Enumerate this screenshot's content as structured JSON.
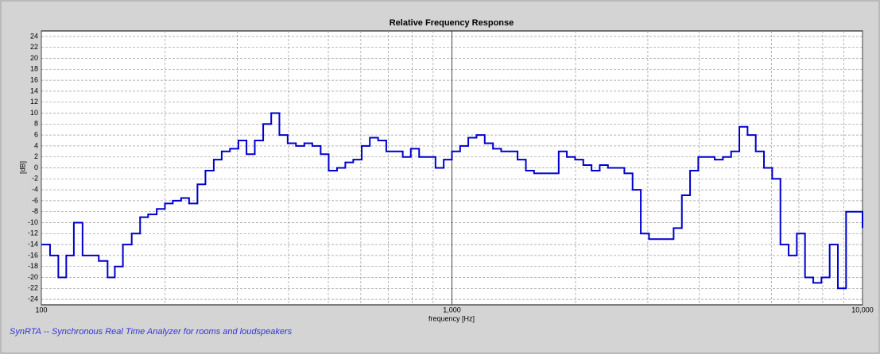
{
  "chart_data": {
    "type": "step",
    "title": "Relative Frequency Response",
    "x_label": "frequency [Hz]",
    "y_label": "[dB]",
    "footer": "SynRTA -- Synchronous Real Time Analyzer for rooms and loudspeakers",
    "log_x": true,
    "grid": true,
    "xlim": [
      100,
      10000
    ],
    "ylim": [
      -25,
      25
    ],
    "xticks": [
      100,
      {
        "value": 1000,
        "label": "1,000"
      },
      {
        "value": 10000,
        "label": "10,000"
      }
    ],
    "xminor_ticks": [
      200,
      300,
      400,
      500,
      600,
      700,
      800,
      900,
      2000,
      3000,
      4000,
      5000,
      6000,
      7000,
      8000,
      9000
    ],
    "yticks": [
      -24,
      -22,
      -20,
      -18,
      -16,
      -14,
      -12,
      -10,
      -8,
      -6,
      -4,
      -2,
      0,
      2,
      4,
      6,
      8,
      10,
      12,
      14,
      16,
      18,
      20,
      22,
      24
    ],
    "series": [
      {
        "color": "#0000cc",
        "x": [
          100,
          105,
          110,
          115,
          120,
          126,
          132,
          138,
          145,
          151,
          158,
          166,
          174,
          182,
          191,
          200,
          209,
          219,
          229,
          240,
          251,
          263,
          275,
          288,
          302,
          316,
          331,
          347,
          363,
          380,
          398,
          417,
          437,
          457,
          479,
          501,
          525,
          550,
          575,
          603,
          631,
          661,
          692,
          724,
          759,
          794,
          832,
          871,
          912,
          955,
          1000,
          1047,
          1096,
          1148,
          1202,
          1259,
          1318,
          1380,
          1445,
          1514,
          1585,
          1660,
          1738,
          1820,
          1905,
          1995,
          2089,
          2188,
          2291,
          2399,
          2512,
          2630,
          2754,
          2884,
          3020,
          3162,
          3311,
          3467,
          3631,
          3802,
          3981,
          4169,
          4365,
          4571,
          4786,
          5012,
          5248,
          5495,
          5754,
          6026,
          6310,
          6607,
          6918,
          7244,
          7586,
          7943,
          8318,
          8710,
          9120,
          9550,
          10000
        ],
        "values": [
          -14,
          -16,
          -20,
          -16,
          -10,
          -16,
          -16,
          -17,
          -20,
          -18,
          -14,
          -12,
          -9,
          -8.5,
          -7.5,
          -6.5,
          -6,
          -5.5,
          -6.5,
          -3,
          -0.5,
          1.5,
          3,
          3.5,
          5,
          2.5,
          5,
          8,
          10,
          6,
          4.5,
          4,
          4.5,
          4,
          2.5,
          -0.5,
          0,
          1,
          1.5,
          4,
          5.5,
          5,
          3,
          3,
          2,
          3.5,
          2,
          2,
          0,
          1.5,
          3,
          4,
          5.5,
          6,
          4.5,
          3.5,
          3,
          3,
          1.5,
          -0.5,
          -1,
          -1,
          -1,
          3,
          2,
          1.5,
          0.5,
          -0.5,
          0.5,
          0,
          0,
          -1,
          -4,
          -12,
          -13,
          -13,
          -13,
          -11,
          -5,
          -0.5,
          2,
          2,
          1.5,
          2,
          3,
          7.5,
          6,
          3,
          0,
          -2,
          -14,
          -16,
          -12,
          -20,
          -21,
          -20,
          -14,
          -22,
          -8,
          -8,
          -11
        ]
      }
    ]
  }
}
